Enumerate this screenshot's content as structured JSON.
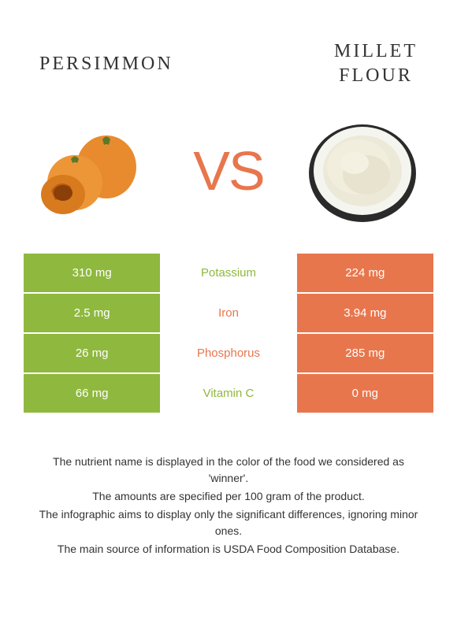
{
  "header": {
    "left_title": "PERSIMMON",
    "right_title": "MILLET FLOUR",
    "vs_text": "VS"
  },
  "colors": {
    "left_bg": "#8fb83f",
    "right_bg": "#e8764d",
    "mid_bg": "#ffffff",
    "text_white": "#ffffff",
    "vs_color": "#e8764d"
  },
  "nutrients": [
    {
      "name": "Potassium",
      "left": "310 mg",
      "right": "224 mg",
      "winner": "left"
    },
    {
      "name": "Iron",
      "left": "2.5 mg",
      "right": "3.94 mg",
      "winner": "right"
    },
    {
      "name": "Phosphorus",
      "left": "26 mg",
      "right": "285 mg",
      "winner": "right"
    },
    {
      "name": "Vitamin C",
      "left": "66 mg",
      "right": "0 mg",
      "winner": "left"
    }
  ],
  "footer": {
    "line1": "The nutrient name is displayed in the color of the food we considered as 'winner'.",
    "line2": "The amounts are specified per 100 gram of the product.",
    "line3": "The infographic aims to display only the significant differences, ignoring minor ones.",
    "line4": "The main source of information is USDA Food Composition Database."
  }
}
